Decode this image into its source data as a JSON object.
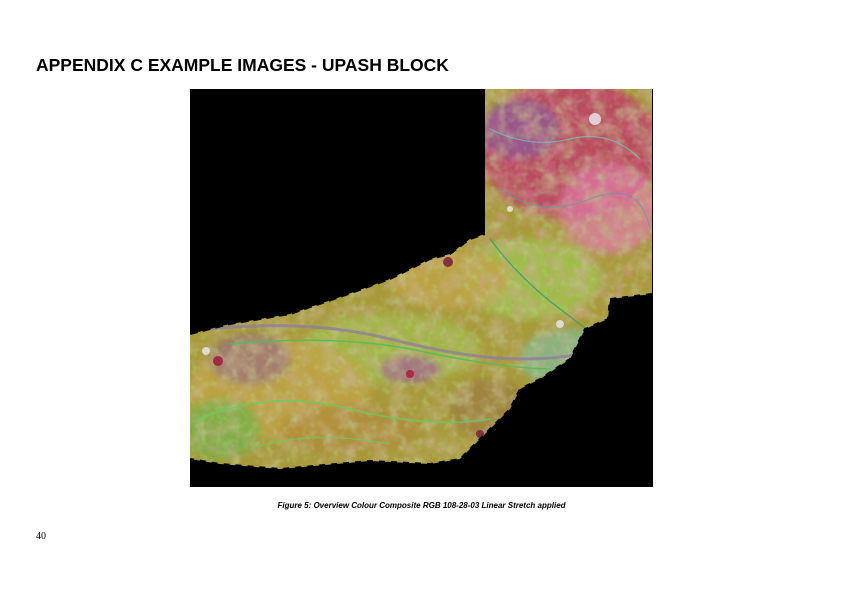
{
  "document": {
    "heading": "APPENDIX C EXAMPLE IMAGES - UPASH BLOCK",
    "figure": {
      "caption": "Figure 5: Overview Colour Composite RGB 108-28-03 Linear Stretch applied",
      "background_color": "#000000",
      "palette": {
        "olive": "#a89a3a",
        "gold": "#c2a447",
        "lime": "#9ecb52",
        "green": "#5fb84a",
        "magenta": "#c0336e",
        "pink": "#e07aa8",
        "purple": "#8a5a9a",
        "maroon": "#7a1f3a",
        "cyan": "#6ec9c4",
        "white": "#e8e4ea"
      }
    },
    "page_number": "40"
  }
}
